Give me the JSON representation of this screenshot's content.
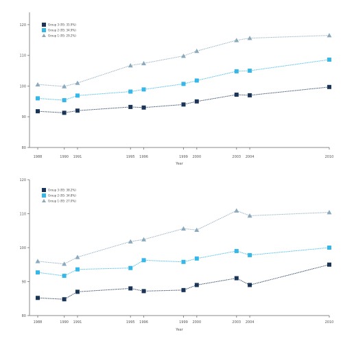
{
  "chart_data": [
    {
      "type": "line",
      "title": "",
      "xlabel": "Year",
      "ylabel": "",
      "grid": false,
      "legend_position": "top-left",
      "x": [
        "1988",
        "1990",
        "1991",
        "1995",
        "1996",
        "1999",
        "2000",
        "2003",
        "2004",
        "2010"
      ],
      "ylim": [
        80,
        124
      ],
      "yticks": [
        "80",
        "90",
        "100",
        "110",
        "120"
      ],
      "series": [
        {
          "name": "Group 3 (95: 35.9%)",
          "color": "#1b3558",
          "marker": "square",
          "values": [
            91.8,
            91.3,
            92.0,
            93.2,
            93.0,
            94.0,
            95.0,
            97.2,
            97.0,
            99.7
          ]
        },
        {
          "name": "Group 2 (95: 34.9%)",
          "color": "#36b7e8",
          "marker": "square",
          "values": [
            96.0,
            95.4,
            96.9,
            98.2,
            98.9,
            100.7,
            101.8,
            104.8,
            105.0,
            108.6
          ]
        },
        {
          "name": "Group 1 (95: 29.2%)",
          "color": "#8aa9bd",
          "marker": "triangle",
          "values": [
            100.5,
            99.9,
            101.0,
            106.7,
            107.4,
            109.8,
            111.4,
            114.9,
            115.6,
            116.5
          ]
        }
      ]
    },
    {
      "type": "line",
      "title": "",
      "xlabel": "Year",
      "ylabel": "",
      "grid": false,
      "legend_position": "top-left",
      "x": [
        "1988",
        "1990",
        "1991",
        "1995",
        "1996",
        "1999",
        "2000",
        "2003",
        "2004",
        "2010"
      ],
      "ylim": [
        80,
        120
      ],
      "yticks": [
        "80",
        "90",
        "100",
        "110",
        "120"
      ],
      "series": [
        {
          "name": "Group 3 (95: 38.2%)",
          "color": "#1b3558",
          "marker": "square",
          "values": [
            85.2,
            84.8,
            87.0,
            88.0,
            87.2,
            87.5,
            89.0,
            91.0,
            89.0,
            95.0
          ]
        },
        {
          "name": "Group 2 (95: 34.8%)",
          "color": "#36b7e8",
          "marker": "square",
          "values": [
            92.7,
            91.7,
            93.6,
            94.0,
            96.3,
            95.8,
            96.8,
            99.0,
            97.8,
            100.0
          ]
        },
        {
          "name": "Group 1 (95: 27.0%)",
          "color": "#8aa9bd",
          "marker": "triangle",
          "values": [
            96.0,
            95.2,
            97.2,
            101.8,
            102.4,
            105.6,
            105.2,
            110.9,
            109.4,
            110.4
          ]
        }
      ]
    }
  ]
}
